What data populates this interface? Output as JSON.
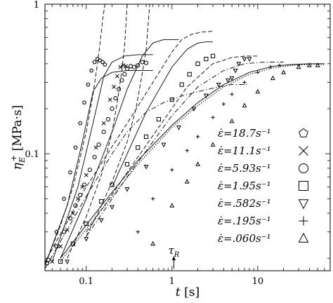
{
  "chart_data": {
    "type": "scatter",
    "title": "",
    "xlabel": "t [s]",
    "ylabel": "η_E^+ [MPa·s]",
    "xscale": "log",
    "yscale": "log",
    "xlim": [
      0.033,
      70
    ],
    "ylim": [
      0.0165,
      1.0
    ],
    "x_ticks": [
      0.1,
      1,
      10
    ],
    "x_tick_labels": [
      "0.1",
      "1",
      "10"
    ],
    "y_ticks": [
      0.1,
      1
    ],
    "y_tick_labels": [
      "0.1",
      "1"
    ],
    "grid": false,
    "legend_position": "bottom-right",
    "annotation": {
      "text": "τ_R",
      "x": 1.05
    },
    "series": [
      {
        "name": "ε̇=18.7s⁻¹",
        "marker": "pentagon",
        "x": [
          0.035,
          0.045,
          0.055,
          0.065,
          0.075,
          0.085,
          0.095,
          0.105,
          0.115,
          0.125,
          0.135,
          0.145,
          0.155,
          0.165
        ],
        "y": [
          0.0185,
          0.03,
          0.05,
          0.075,
          0.11,
          0.16,
          0.22,
          0.29,
          0.36,
          0.41,
          0.43,
          0.42,
          0.41,
          0.395
        ]
      },
      {
        "name": "ε̇=11.1s⁻¹",
        "marker": "cross",
        "x": [
          0.04,
          0.05,
          0.06,
          0.07,
          0.08,
          0.09,
          0.1,
          0.13,
          0.16,
          0.19,
          0.21,
          0.23,
          0.25,
          0.27,
          0.29
        ],
        "y": [
          0.019,
          0.024,
          0.031,
          0.04,
          0.05,
          0.06,
          0.072,
          0.11,
          0.16,
          0.23,
          0.28,
          0.33,
          0.38,
          0.39,
          0.385
        ]
      },
      {
        "name": "ε̇=5.93s⁻¹",
        "marker": "circle",
        "x": [
          0.036,
          0.045,
          0.055,
          0.065,
          0.075,
          0.085,
          0.095,
          0.11,
          0.125,
          0.14,
          0.16,
          0.18,
          0.2,
          0.22,
          0.24,
          0.26,
          0.28,
          0.3,
          0.33,
          0.36,
          0.4,
          0.45,
          0.5
        ],
        "y": [
          0.0195,
          0.024,
          0.03,
          0.037,
          0.045,
          0.053,
          0.062,
          0.078,
          0.095,
          0.115,
          0.14,
          0.17,
          0.2,
          0.235,
          0.27,
          0.31,
          0.34,
          0.37,
          0.385,
          0.38,
          0.39,
          0.41,
          0.405
        ]
      },
      {
        "name": "ε̇=1.95s⁻¹",
        "marker": "square",
        "x": [
          0.05,
          0.07,
          0.1,
          0.15,
          0.2,
          0.3,
          0.4,
          0.5,
          0.7,
          1.0,
          1.3,
          1.6,
          2.0,
          2.5,
          3.0
        ],
        "y": [
          0.019,
          0.025,
          0.034,
          0.048,
          0.062,
          0.085,
          0.11,
          0.13,
          0.17,
          0.23,
          0.29,
          0.34,
          0.4,
          0.43,
          0.45
        ]
      },
      {
        "name": "ε̇=.582s⁻¹",
        "marker": "triangle-down",
        "x": [
          0.06,
          0.1,
          0.15,
          0.2,
          0.3,
          0.5,
          0.8,
          1.2,
          1.8,
          2.5,
          3.5,
          4.5,
          5.0,
          5.5,
          6.0,
          7.0,
          8.0
        ],
        "y": [
          0.019,
          0.027,
          0.036,
          0.044,
          0.058,
          0.082,
          0.115,
          0.15,
          0.2,
          0.245,
          0.29,
          0.31,
          0.32,
          0.36,
          0.4,
          0.43,
          0.43
        ]
      },
      {
        "name": "ε̇=.195s⁻¹",
        "marker": "plus",
        "x": [
          0.4,
          0.6,
          1.0,
          1.5,
          2.0,
          3.0,
          4.0,
          5.0,
          7.0,
          10.0,
          14.0,
          18.0
        ],
        "y": [
          0.03,
          0.05,
          0.078,
          0.105,
          0.13,
          0.175,
          0.215,
          0.25,
          0.3,
          0.35,
          0.38,
          0.39
        ]
      },
      {
        "name": "ε̇=.060s⁻¹",
        "marker": "triangle-up",
        "x": [
          0.6,
          1.0,
          1.5,
          2.0,
          3.0,
          5.0,
          7.0,
          10.0,
          15.0,
          20.0,
          30.0,
          40.0,
          50.0
        ],
        "y": [
          0.025,
          0.045,
          0.065,
          0.085,
          0.115,
          0.165,
          0.21,
          0.26,
          0.32,
          0.35,
          0.38,
          0.39,
          0.39
        ]
      }
    ],
    "model_curves": [
      {
        "style": "dashed",
        "x": [
          0.033,
          0.05,
          0.07,
          0.1,
          0.12,
          0.135,
          0.145,
          0.155,
          0.165
        ],
        "y": [
          0.018,
          0.033,
          0.06,
          0.14,
          0.25,
          0.4,
          0.55,
          0.78,
          1.0
        ]
      },
      {
        "style": "dashed",
        "x": [
          0.06,
          0.1,
          0.15,
          0.2,
          0.23,
          0.26,
          0.28,
          0.3
        ],
        "y": [
          0.02,
          0.038,
          0.072,
          0.14,
          0.22,
          0.36,
          0.52,
          1.0
        ]
      },
      {
        "style": "dashed",
        "x": [
          0.1,
          0.15,
          0.2,
          0.3,
          0.38,
          0.44,
          0.5,
          0.55
        ],
        "y": [
          0.028,
          0.045,
          0.065,
          0.12,
          0.2,
          0.32,
          0.5,
          1.0
        ]
      },
      {
        "style": "dashed",
        "x": [
          0.03,
          0.1,
          0.3,
          0.6,
          1.0,
          1.3,
          1.7,
          2.2,
          3.0
        ],
        "y": [
          0.017,
          0.06,
          0.16,
          0.3,
          0.48,
          0.58,
          0.63,
          0.65,
          0.66
        ]
      },
      {
        "style": "dashed",
        "x": [
          0.1,
          0.3,
          0.7,
          1.5,
          3.0,
          5.0,
          7.0,
          10.0
        ],
        "y": [
          0.03,
          0.075,
          0.15,
          0.28,
          0.4,
          0.44,
          0.45,
          0.45
        ]
      },
      {
        "style": "dash-dot",
        "x": [
          0.033,
          0.1,
          0.2,
          0.3,
          0.5,
          0.8,
          1.2,
          2.0,
          3.5,
          5.0,
          8.0
        ],
        "y": [
          0.017,
          0.052,
          0.1,
          0.14,
          0.19,
          0.22,
          0.24,
          0.26,
          0.28,
          0.29,
          0.29
        ]
      },
      {
        "style": "dash-dot",
        "x": [
          0.1,
          0.3,
          1.0,
          2.0,
          4.0,
          7.0,
          12.0,
          20.0
        ],
        "y": [
          0.028,
          0.07,
          0.18,
          0.28,
          0.36,
          0.4,
          0.41,
          0.41
        ]
      },
      {
        "style": "solid",
        "x": [
          0.033,
          0.06,
          0.09,
          0.12,
          0.15,
          0.2,
          0.3,
          0.6
        ],
        "y": [
          0.018,
          0.045,
          0.12,
          0.26,
          0.32,
          0.35,
          0.36,
          0.36
        ]
      },
      {
        "style": "solid",
        "x": [
          0.04,
          0.08,
          0.12,
          0.16,
          0.2,
          0.28,
          0.4,
          0.6
        ],
        "y": [
          0.019,
          0.06,
          0.16,
          0.33,
          0.41,
          0.45,
          0.46,
          0.46
        ]
      },
      {
        "style": "solid",
        "x": [
          0.05,
          0.1,
          0.2,
          0.3,
          0.45,
          0.6,
          0.8,
          1.2
        ],
        "y": [
          0.02,
          0.05,
          0.14,
          0.27,
          0.45,
          0.55,
          0.58,
          0.58
        ]
      },
      {
        "style": "solid",
        "x": [
          0.2,
          0.5,
          1.0,
          1.5,
          2.0,
          2.5,
          3.0
        ],
        "y": [
          0.06,
          0.19,
          0.38,
          0.5,
          0.55,
          0.56,
          0.56
        ]
      },
      {
        "style": "solid",
        "x": [
          0.05,
          0.15,
          0.4,
          1.0,
          2.0,
          4.0,
          8.0,
          15.0,
          25.0,
          40.0,
          60.0
        ],
        "y": [
          0.02,
          0.045,
          0.09,
          0.155,
          0.22,
          0.29,
          0.35,
          0.385,
          0.395,
          0.4,
          0.4
        ]
      },
      {
        "style": "dotted",
        "x": [
          0.05,
          0.15,
          0.4,
          1.0,
          2.0,
          4.0,
          8.0,
          15.0,
          25.0,
          40.0,
          60.0
        ],
        "y": [
          0.019,
          0.042,
          0.085,
          0.15,
          0.21,
          0.28,
          0.34,
          0.375,
          0.39,
          0.395,
          0.395
        ]
      }
    ]
  }
}
